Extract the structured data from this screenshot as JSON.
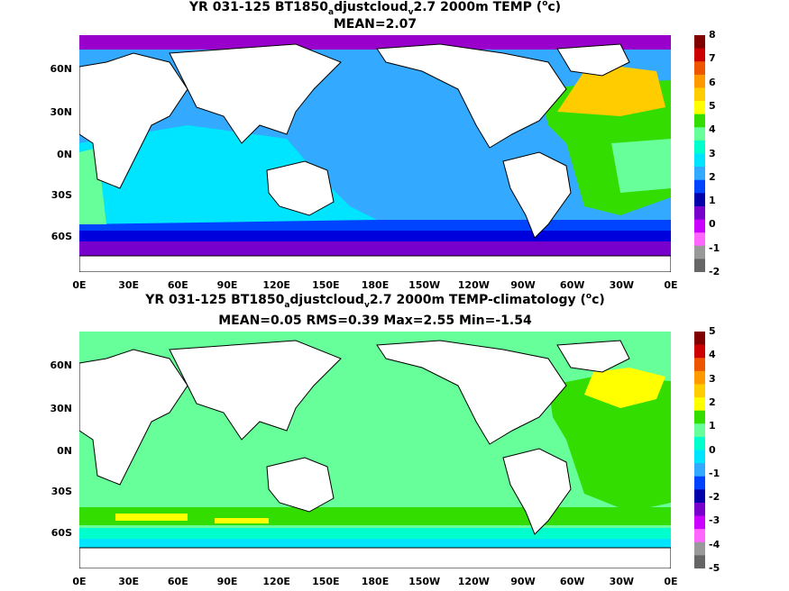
{
  "top_panel": {
    "title_part1": "YR 031-125 BT1850",
    "title_sub1": "a",
    "title_part2": "djustcloud",
    "title_sub2": "v",
    "title_part3": "2.7 2000m TEMP (",
    "title_sup": "o",
    "title_part4": "c)",
    "subtitle": "MEAN=2.07",
    "colorbar_labels": [
      "8",
      "7",
      "6",
      "5",
      "4",
      "3",
      "2",
      "1",
      "0",
      "-1",
      "-2"
    ],
    "colorbar_colors": [
      "#800000",
      "#cc0000",
      "#ee5500",
      "#ff9900",
      "#ffcc00",
      "#ffff00",
      "#33dd00",
      "#66ff99",
      "#00ffcc",
      "#00e5ff",
      "#33aaff",
      "#0044ff",
      "#0000aa",
      "#7700cc",
      "#cc00ff",
      "#ff66ff",
      "#999999",
      "#666666"
    ]
  },
  "bottom_panel": {
    "title_part1": "YR 031-125 BT1850",
    "title_sub1": "a",
    "title_part2": "djustcloud",
    "title_sub2": "v",
    "title_part3": "2.7 2000m TEMP-climatology (",
    "title_sup": "o",
    "title_part4": "c)",
    "subtitle": "MEAN=0.05   RMS=0.39   Max=2.55   Min=-1.54",
    "colorbar_labels": [
      "5",
      "4",
      "3",
      "2",
      "1",
      "0",
      "-1",
      "-2",
      "-3",
      "-4",
      "-5"
    ],
    "colorbar_colors": [
      "#800000",
      "#cc0000",
      "#ee5500",
      "#ff9900",
      "#ffcc00",
      "#ffff00",
      "#33dd00",
      "#66ff99",
      "#00ffcc",
      "#00e5ff",
      "#33aaff",
      "#0044ff",
      "#0000aa",
      "#7700cc",
      "#cc00ff",
      "#ff66ff",
      "#999999",
      "#666666"
    ]
  },
  "axes": {
    "lat_labels": [
      "60N",
      "30N",
      "0N",
      "30S",
      "60S"
    ],
    "lon_labels": [
      "0E",
      "30E",
      "60E",
      "90E",
      "120E",
      "150E",
      "180E",
      "150W",
      "120W",
      "90W",
      "60W",
      "30W",
      "0E"
    ]
  },
  "colors": {
    "land": "#ffffff",
    "coast": "#000000"
  }
}
